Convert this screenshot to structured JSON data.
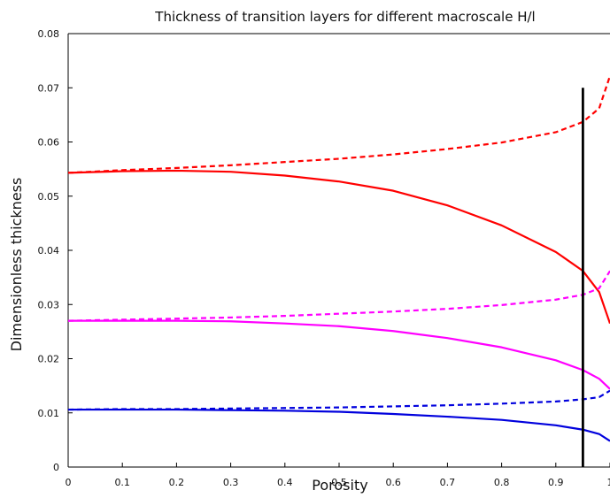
{
  "chart_data": {
    "type": "line",
    "title": "Thickness of transition layers for different macroscale H/l",
    "xlabel": "Porosity",
    "ylabel": "Dimensionless thickness",
    "xlim": [
      0,
      1
    ],
    "ylim": [
      0,
      0.08
    ],
    "xticks": [
      "0",
      "0.1",
      "0.2",
      "0.3",
      "0.4",
      "0.5",
      "0.6",
      "0.7",
      "0.8",
      "0.9",
      "1"
    ],
    "yticks": [
      "0",
      "0.01",
      "0.02",
      "0.03",
      "0.04",
      "0.05",
      "0.06",
      "0.07",
      "0.08"
    ],
    "grid": false,
    "legend": "none",
    "series": [
      {
        "color": "#ff0000",
        "dash": "solid",
        "x": [
          0.0,
          0.1,
          0.2,
          0.3,
          0.4,
          0.5,
          0.6,
          0.7,
          0.8,
          0.9,
          0.95,
          0.98,
          1.0
        ],
        "y": [
          0.0543,
          0.0546,
          0.0547,
          0.0545,
          0.0538,
          0.0527,
          0.051,
          0.0483,
          0.0446,
          0.0397,
          0.0362,
          0.0323,
          0.0265
        ]
      },
      {
        "color": "#ff0000",
        "dash": "dashed",
        "x": [
          0.0,
          0.1,
          0.2,
          0.3,
          0.4,
          0.5,
          0.6,
          0.7,
          0.8,
          0.9,
          0.95,
          0.98,
          1.0
        ],
        "y": [
          0.0543,
          0.0548,
          0.0552,
          0.0557,
          0.0563,
          0.0569,
          0.0577,
          0.0587,
          0.0599,
          0.0618,
          0.0637,
          0.0662,
          0.0722
        ]
      },
      {
        "color": "#ff00ff",
        "dash": "solid",
        "x": [
          0.0,
          0.1,
          0.2,
          0.3,
          0.4,
          0.5,
          0.6,
          0.7,
          0.8,
          0.9,
          0.95,
          0.98,
          1.0
        ],
        "y": [
          0.027,
          0.027,
          0.027,
          0.0269,
          0.0265,
          0.026,
          0.0251,
          0.0238,
          0.0221,
          0.0197,
          0.0179,
          0.0163,
          0.0144
        ]
      },
      {
        "color": "#ff00ff",
        "dash": "dashed",
        "x": [
          0.0,
          0.1,
          0.2,
          0.3,
          0.4,
          0.5,
          0.6,
          0.7,
          0.8,
          0.9,
          0.95,
          0.98,
          1.0
        ],
        "y": [
          0.027,
          0.0272,
          0.0274,
          0.0276,
          0.0279,
          0.0283,
          0.0287,
          0.0292,
          0.0299,
          0.0309,
          0.0318,
          0.033,
          0.0362
        ]
      },
      {
        "color": "#0000dd",
        "dash": "solid",
        "x": [
          0.0,
          0.1,
          0.2,
          0.3,
          0.4,
          0.5,
          0.6,
          0.7,
          0.8,
          0.9,
          0.95,
          0.98,
          1.0
        ],
        "y": [
          0.0106,
          0.0106,
          0.0106,
          0.0105,
          0.0104,
          0.0102,
          0.0098,
          0.0093,
          0.0087,
          0.0077,
          0.0069,
          0.0061,
          0.0048
        ]
      },
      {
        "color": "#0000dd",
        "dash": "dashed",
        "x": [
          0.0,
          0.1,
          0.2,
          0.3,
          0.4,
          0.5,
          0.6,
          0.7,
          0.8,
          0.9,
          0.95,
          0.98,
          1.0
        ],
        "y": [
          0.0106,
          0.0107,
          0.0107,
          0.0108,
          0.0109,
          0.011,
          0.0112,
          0.0114,
          0.0117,
          0.0121,
          0.0125,
          0.0129,
          0.0141
        ]
      }
    ],
    "vertical_line": {
      "color": "#000000",
      "x": 0.95,
      "y": [
        0,
        0.07
      ]
    }
  }
}
